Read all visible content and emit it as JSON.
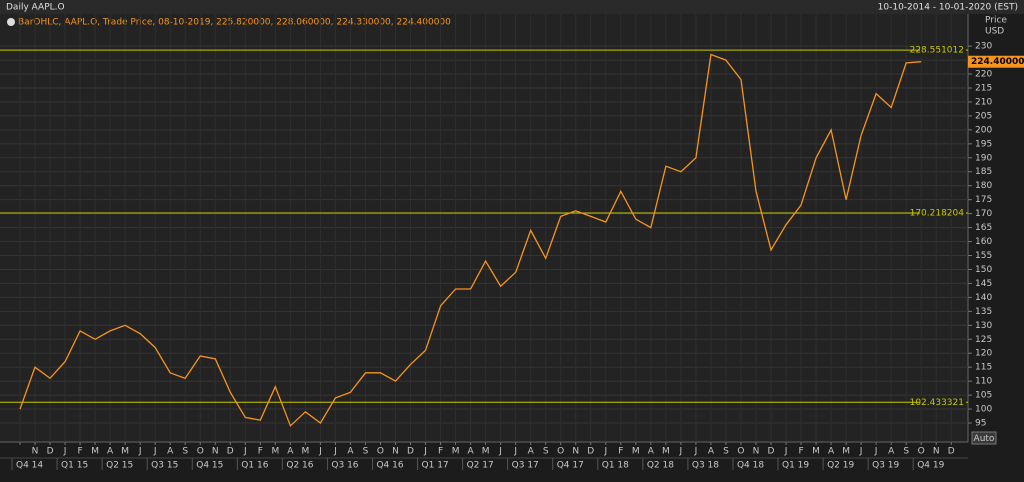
{
  "chart_data": {
    "type": "line",
    "title": "Daily AAPL.O",
    "date_range": "10-10-2014 - 10-01-2020 (EST)",
    "legend_text": "BarOHLC, AAPL.O, Trade Price, 08-10-2019, 225.820000, 228.060000, 224.330000, 224.400000",
    "y_axis_label": "Price",
    "y_axis_unit": "USD",
    "button": "Auto",
    "categories": [
      null,
      "N",
      "D",
      "J",
      "F",
      "M",
      "A",
      "M",
      "J",
      "J",
      "A",
      "S",
      "O",
      "N",
      "D",
      "J",
      "F",
      "M",
      "A",
      "M",
      "J",
      "J",
      "A",
      "S",
      "O",
      "N",
      "D",
      "J",
      "F",
      "M",
      "A",
      "M",
      "J",
      "J",
      "A",
      "S",
      "O",
      "N",
      "D",
      "J",
      "F",
      "M",
      "A",
      "M",
      "J",
      "J",
      "A",
      "S",
      "O",
      "N",
      "D",
      "J",
      "F",
      "M",
      "A",
      "M",
      "J",
      "J",
      "A",
      "S",
      "O",
      "N",
      "D"
    ],
    "quarters": [
      "Q4 14",
      "Q1 15",
      "Q2 15",
      "Q3 15",
      "Q4 15",
      "Q1 16",
      "Q2 16",
      "Q3 16",
      "Q4 16",
      "Q1 17",
      "Q2 17",
      "Q3 17",
      "Q4 17",
      "Q1 18",
      "Q2 18",
      "Q3 18",
      "Q4 18",
      "Q1 19",
      "Q2 19",
      "Q3 19",
      "Q4 19"
    ],
    "series": [
      {
        "name": "AAPL.O",
        "color": "#f7941d",
        "values": [
          100,
          115,
          111,
          117,
          128,
          125,
          128,
          130,
          127,
          122,
          113,
          111,
          119,
          118,
          106,
          97,
          96,
          108,
          94,
          99,
          95,
          104,
          106,
          113,
          113,
          110,
          116,
          121,
          137,
          143,
          143,
          153,
          144,
          149,
          164,
          154,
          169,
          171,
          169,
          167,
          178,
          168,
          165,
          187,
          185,
          190,
          227,
          225,
          218,
          178,
          157,
          166,
          173,
          190,
          200,
          175,
          198,
          213,
          208,
          224,
          224.4,
          null,
          null
        ]
      }
    ],
    "levels": [
      228.551012,
      170.218204,
      102.433321
    ],
    "level_color": "#c8c800",
    "last_price": {
      "value": 224.4,
      "label": "224.400000"
    },
    "ylim": [
      88.2,
      241.5
    ],
    "yticks": [
      95,
      100,
      105,
      110,
      115,
      120,
      125,
      130,
      135,
      140,
      145,
      150,
      155,
      160,
      165,
      170,
      175,
      180,
      185,
      190,
      195,
      200,
      205,
      210,
      215,
      220,
      225,
      230
    ],
    "grid": true
  }
}
